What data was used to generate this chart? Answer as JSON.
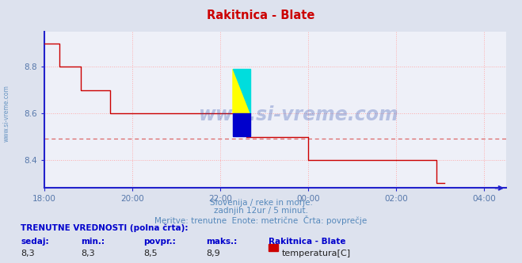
{
  "title": "Rakitnica - Blate",
  "title_color": "#cc0000",
  "bg_color": "#dde2ee",
  "plot_bg_color": "#eef0f8",
  "grid_color": "#ffaaaa",
  "line_color": "#cc0000",
  "axis_color": "#2222cc",
  "tick_color": "#5577aa",
  "ylim": [
    8.28,
    8.95
  ],
  "xlim_hours": [
    18.0,
    28.5
  ],
  "x_ticks_hours": [
    18,
    20,
    22,
    24,
    26,
    28
  ],
  "x_tick_labels": [
    "18:00",
    "20:00",
    "22:00",
    "00:00",
    "02:00",
    "04:00"
  ],
  "y_ticks": [
    8.4,
    8.6,
    8.8
  ],
  "avg_line_y": 8.49,
  "avg_line_color": "#dd6666",
  "watermark": "www.si-vreme.com",
  "watermark_color": "#2244aa",
  "watermark_alpha": 0.28,
  "sub_text1": "Slovenija / reke in morje.",
  "sub_text2": "zadnjih 12ur / 5 minut.",
  "sub_text3": "Meritve: trenutne  Enote: metrične  Črta: povprečje",
  "sub_text_color": "#5588bb",
  "footer_label": "TRENUTNE VREDNOSTI (polna črta):",
  "footer_color": "#0000cc",
  "footer_cols": [
    "sedaj:",
    "min.:",
    "povpr.:",
    "maks.:",
    "Rakitnica - Blate"
  ],
  "footer_vals": [
    "8,3",
    "8,3",
    "8,5",
    "8,9",
    "temperatura[C]"
  ],
  "legend_color": "#cc0000",
  "side_text": "www.si-vreme.com",
  "side_text_color": "#5588bb",
  "time_data_hours": [
    18.0,
    18.083,
    18.167,
    18.25,
    18.333,
    18.5,
    18.667,
    18.833,
    18.917,
    19.0,
    19.083,
    19.25,
    19.333,
    19.5,
    19.667,
    19.833,
    19.917,
    20.0,
    20.167,
    20.333,
    20.5,
    20.667,
    20.833,
    21.0,
    21.167,
    21.333,
    21.5,
    21.667,
    21.833,
    22.0,
    22.167,
    22.333,
    22.5,
    22.583,
    22.667,
    22.833,
    23.0,
    23.167,
    23.333,
    23.5,
    23.667,
    23.833,
    24.0,
    24.167,
    24.333,
    24.5,
    24.667,
    24.833,
    25.0,
    25.167,
    25.333,
    25.5,
    25.667,
    25.833,
    26.0,
    26.167,
    26.333,
    26.5,
    26.583,
    26.667,
    26.75,
    26.833,
    26.917,
    27.0,
    27.083
  ],
  "temp_data": [
    8.9,
    8.9,
    8.9,
    8.9,
    8.8,
    8.8,
    8.8,
    8.7,
    8.7,
    8.7,
    8.7,
    8.7,
    8.7,
    8.6,
    8.6,
    8.6,
    8.6,
    8.6,
    8.6,
    8.6,
    8.6,
    8.6,
    8.6,
    8.6,
    8.6,
    8.6,
    8.6,
    8.6,
    8.6,
    8.6,
    8.6,
    8.6,
    8.6,
    8.5,
    8.5,
    8.5,
    8.5,
    8.5,
    8.5,
    8.5,
    8.5,
    8.5,
    8.4,
    8.4,
    8.4,
    8.4,
    8.4,
    8.4,
    8.4,
    8.4,
    8.4,
    8.4,
    8.4,
    8.4,
    8.4,
    8.4,
    8.4,
    8.4,
    8.4,
    8.4,
    8.4,
    8.4,
    8.3,
    8.3,
    8.3
  ],
  "logo_y_color": "#ffff00",
  "logo_c_color": "#00dddd",
  "logo_b_color": "#0000cc"
}
